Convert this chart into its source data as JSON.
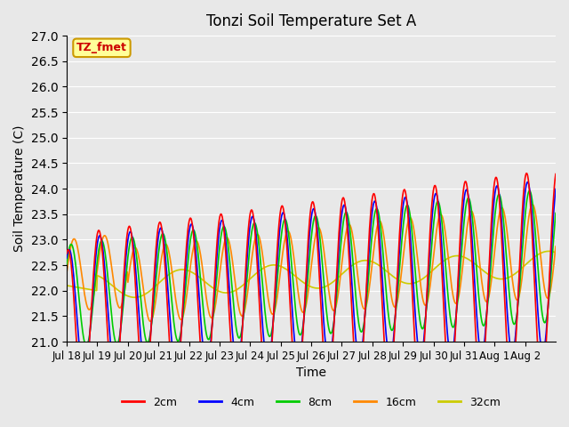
{
  "title": "Tonzi Soil Temperature Set A",
  "xlabel": "Time",
  "ylabel": "Soil Temperature (C)",
  "ylim": [
    21.0,
    27.0
  ],
  "yticks": [
    21.0,
    21.5,
    22.0,
    22.5,
    23.0,
    23.5,
    24.0,
    24.5,
    25.0,
    25.5,
    26.0,
    26.5,
    27.0
  ],
  "xtick_labels": [
    "Jul 18",
    "Jul 19",
    "Jul 20",
    "Jul 21",
    "Jul 22",
    "Jul 23",
    "Jul 24",
    "Jul 25",
    "Jul 26",
    "Jul 27",
    "Jul 28",
    "Jul 29",
    "Jul 30",
    "Jul 31",
    "Aug 1",
    "Aug 2"
  ],
  "legend_entries": [
    "2cm",
    "4cm",
    "8cm",
    "16cm",
    "32cm"
  ],
  "legend_colors": [
    "#ff0000",
    "#0000ff",
    "#00cc00",
    "#ff8800",
    "#cccc00"
  ],
  "line_colors": [
    "#ff0000",
    "#0000ff",
    "#00cc00",
    "#ff8800",
    "#cccc00"
  ],
  "annotation_text": "TZ_fmet",
  "annotation_bg": "#ffff99",
  "annotation_border": "#cc9900",
  "background_color": "#e8e8e8",
  "n_days": 16,
  "points_per_day": 48
}
